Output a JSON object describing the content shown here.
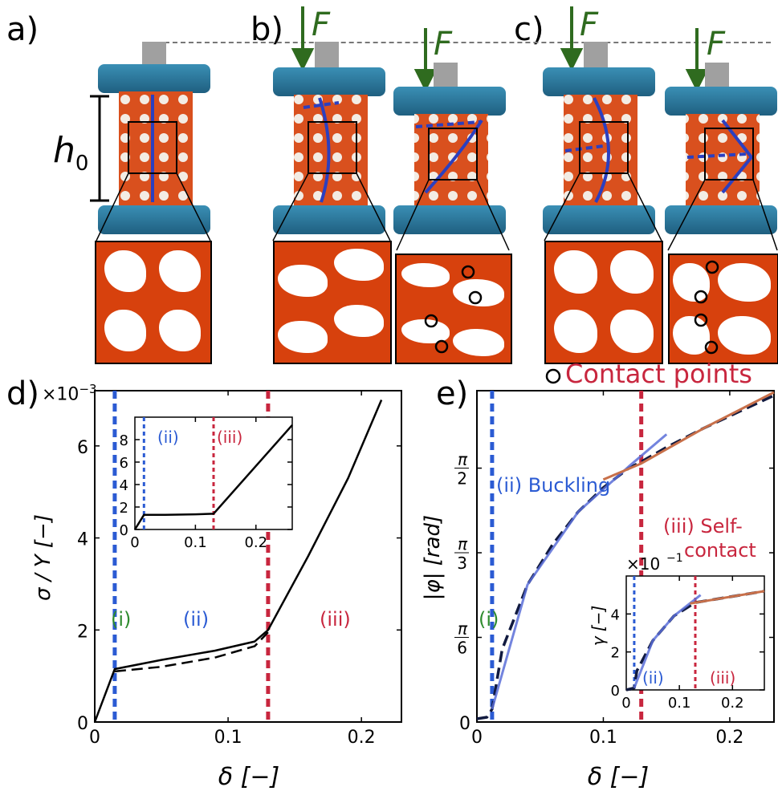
{
  "top": {
    "labels": {
      "a": "a)",
      "b": "b)",
      "c": "c)"
    },
    "force_symbol": "F",
    "height_symbol": "h",
    "height_subscript": "0",
    "contact_legend": "Contact points"
  },
  "plot_d": {
    "label": "d)",
    "multiplier": "×10",
    "multiplier_exp": "−3",
    "ylabel": "σ / Y [−]",
    "xlabel": "δ [−]",
    "regions": {
      "i": "(i)",
      "ii": "(ii)",
      "iii": "(iii)"
    },
    "inset_regions": {
      "ii": "(ii)",
      "iii": "(iii)"
    }
  },
  "plot_e": {
    "label": "e)",
    "ylabel": "|φ| [rad]",
    "xlabel": "δ [−]",
    "regions": {
      "i": "(i)"
    },
    "buckling": "(ii) Buckling",
    "selfcontact_1": "(iii) Self-",
    "selfcontact_2": "contact",
    "inset_multiplier": "×10",
    "inset_exp": "−1",
    "inset_ylabel": "γ [−]",
    "inset_regions": {
      "ii": "(ii)",
      "iii": "(iii)"
    }
  },
  "colors": {
    "blue": "#2b5bd3",
    "red": "#c8263e",
    "green": "#2e8b2e",
    "orange": "#c8704a",
    "force": "#2f6b1f"
  },
  "chart_data": [
    {
      "type": "line",
      "panel": "d",
      "xlim": [
        0,
        0.23
      ],
      "ylim": [
        0,
        7.2
      ],
      "x_ticks": [
        0,
        0.1,
        0.2
      ],
      "x_tick_labels": [
        "0",
        "0.1",
        "0.2"
      ],
      "y_ticks": [
        0,
        2,
        4,
        6
      ],
      "y_tick_labels": [
        "0",
        "2",
        "4",
        "6"
      ],
      "series": [
        {
          "style": "solid",
          "x": [
            0,
            0.015,
            0.05,
            0.09,
            0.12,
            0.13,
            0.16,
            0.19,
            0.215
          ],
          "y": [
            0,
            1.15,
            1.35,
            1.55,
            1.75,
            2.0,
            3.6,
            5.3,
            7.0
          ]
        },
        {
          "style": "dashed",
          "x": [
            0.015,
            0.05,
            0.09,
            0.12,
            0.13
          ],
          "y": [
            1.1,
            1.2,
            1.4,
            1.65,
            1.95
          ]
        }
      ],
      "vlines": [
        {
          "x": 0.015,
          "color": "blue"
        },
        {
          "x": 0.13,
          "color": "red"
        }
      ],
      "inset": {
        "xlim": [
          0,
          0.26
        ],
        "ylim": [
          0,
          10
        ],
        "x_ticks": [
          0.1,
          0.2
        ],
        "x_tick_labels": [
          "0.1",
          "0.2"
        ],
        "y_ticks": [
          0,
          2,
          4,
          6,
          8
        ],
        "y_tick_labels": [
          "0",
          "2",
          "4",
          "6",
          "8"
        ],
        "x_origin_label": "0",
        "series": [
          {
            "style": "solid",
            "x": [
              0,
              0.015,
              0.05,
              0.1,
              0.13,
              0.26
            ],
            "y": [
              0,
              1.3,
              1.3,
              1.35,
              1.4,
              9.3
            ]
          }
        ],
        "vlines": [
          {
            "x": 0.015,
            "color": "blue"
          },
          {
            "x": 0.13,
            "color": "red"
          }
        ]
      }
    },
    {
      "type": "line",
      "panel": "e",
      "xlim": [
        0,
        0.235
      ],
      "ylim": [
        0,
        2.05
      ],
      "x_ticks": [
        0,
        0.1,
        0.2
      ],
      "x_tick_labels": [
        "0",
        "0.1",
        "0.2"
      ],
      "y_ticks": [
        0,
        0.5236,
        1.0472,
        1.5708
      ],
      "y_tick_labels": [
        "0",
        "π/6",
        "π/3",
        "π/2"
      ],
      "series": [
        {
          "style": "dashed-dark",
          "x": [
            0,
            0.008,
            0.012,
            0.02,
            0.04,
            0.06,
            0.08,
            0.1,
            0.12,
            0.13,
            0.15,
            0.18,
            0.21,
            0.235
          ],
          "y": [
            0.02,
            0.03,
            0.08,
            0.45,
            0.85,
            1.1,
            1.3,
            1.45,
            1.57,
            1.61,
            1.7,
            1.82,
            1.93,
            2.02
          ]
        },
        {
          "style": "blue-fit",
          "x": [
            0.012,
            0.04,
            0.08,
            0.12,
            0.15
          ],
          "y": [
            0.08,
            0.85,
            1.3,
            1.58,
            1.78
          ]
        },
        {
          "style": "orange-fit",
          "x": [
            0.1,
            0.13,
            0.18,
            0.235
          ],
          "y": [
            1.5,
            1.6,
            1.82,
            2.04
          ]
        }
      ],
      "vlines": [
        {
          "x": 0.012,
          "color": "blue"
        },
        {
          "x": 0.13,
          "color": "red"
        }
      ],
      "inset": {
        "xlim": [
          0,
          0.26
        ],
        "ylim": [
          0,
          6
        ],
        "x_ticks": [
          0.1,
          0.2
        ],
        "x_tick_labels": [
          "0.1",
          "0.2"
        ],
        "y_ticks": [
          0,
          2,
          4
        ],
        "y_tick_labels": [
          "0",
          "2",
          "4"
        ],
        "x_origin_label": "0",
        "series": [
          {
            "style": "dashed-dark",
            "x": [
              0,
              0.015,
              0.02,
              0.05,
              0.09,
              0.13,
              0.26
            ],
            "y": [
              0,
              0.1,
              1.0,
              2.6,
              3.9,
              4.6,
              5.2
            ]
          },
          {
            "style": "blue-fit",
            "x": [
              0.015,
              0.05,
              0.09,
              0.14
            ],
            "y": [
              0.1,
              2.6,
              3.9,
              5.0
            ]
          },
          {
            "style": "orange-fit",
            "x": [
              0.12,
              0.26
            ],
            "y": [
              4.55,
              5.2
            ]
          }
        ],
        "vlines": [
          {
            "x": 0.015,
            "color": "blue"
          },
          {
            "x": 0.13,
            "color": "red"
          }
        ]
      }
    }
  ]
}
